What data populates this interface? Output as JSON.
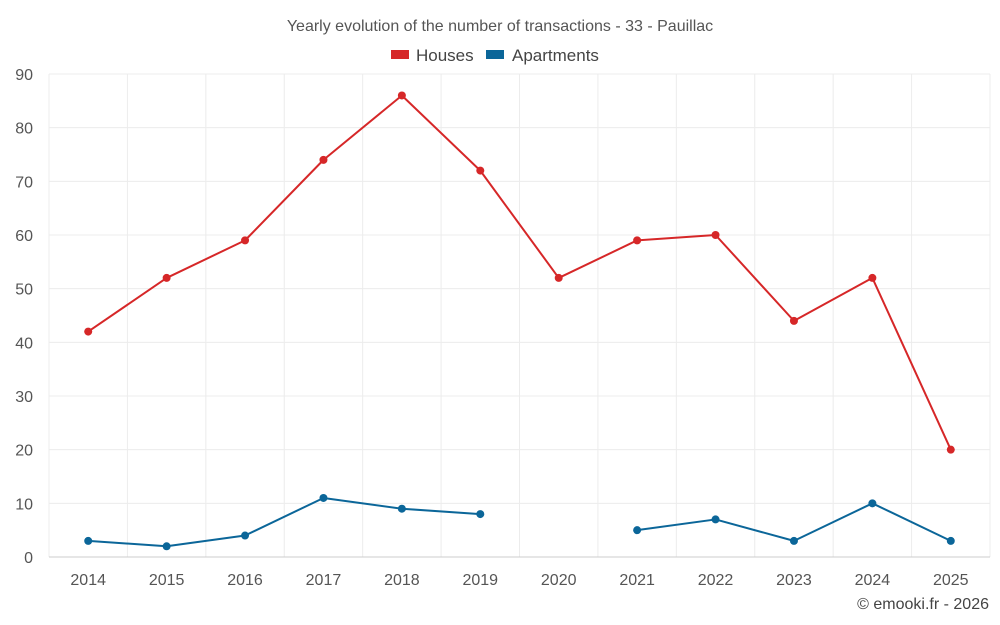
{
  "chart_data": {
    "type": "line",
    "title": "Yearly evolution of the number of transactions - 33 - Pauillac",
    "categories": [
      "2014",
      "2015",
      "2016",
      "2017",
      "2018",
      "2019",
      "2020",
      "2021",
      "2022",
      "2023",
      "2024",
      "2025"
    ],
    "ylim": [
      0,
      90
    ],
    "yticks": [
      0,
      10,
      20,
      30,
      40,
      50,
      60,
      70,
      80,
      90
    ],
    "grid": true,
    "legend_position": "top-center",
    "series": [
      {
        "name": "Houses",
        "color": "#d62728",
        "values": [
          42,
          52,
          59,
          74,
          86,
          72,
          52,
          59,
          60,
          44,
          52,
          20
        ]
      },
      {
        "name": "Apartments",
        "color": "#0b6699",
        "values": [
          3,
          2,
          4,
          11,
          9,
          8,
          null,
          5,
          7,
          3,
          10,
          3
        ]
      }
    ]
  },
  "credit": "© emooki.fr - 2026"
}
